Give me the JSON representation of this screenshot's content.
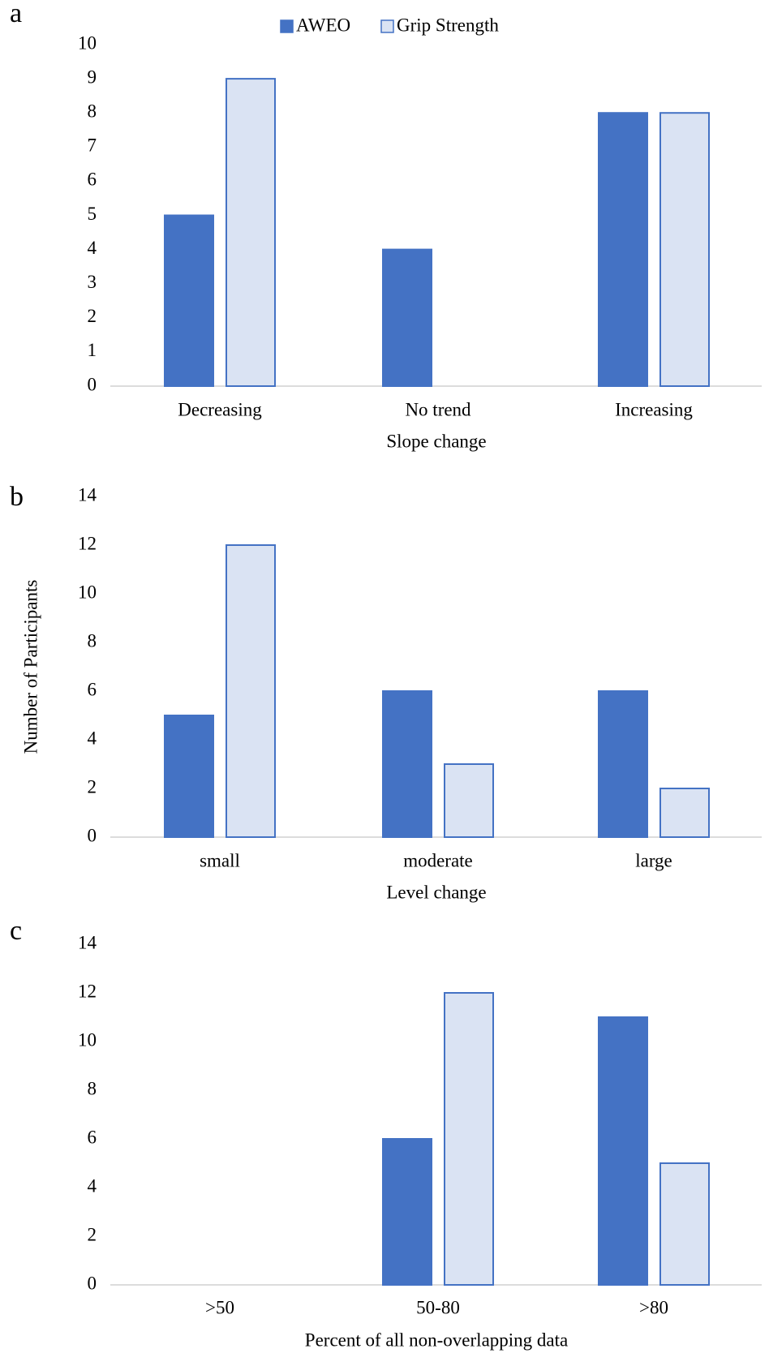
{
  "chart_data": [
    {
      "type": "bar",
      "panel": "a",
      "x_label": "Slope change",
      "categories": [
        "Decreasing",
        "No trend",
        "Increasing"
      ],
      "series": [
        {
          "name": "AWEO",
          "color": "#4472c4",
          "edgecolor": "#4472c4",
          "values": [
            5,
            4,
            8
          ]
        },
        {
          "name": "Grip Strength",
          "color": "#dae3f3",
          "edgecolor": "#4472c4",
          "values": [
            9,
            0,
            8
          ]
        }
      ],
      "ylim": [
        0,
        10
      ],
      "yticks": [
        0,
        1,
        2,
        3,
        4,
        5,
        6,
        7,
        8,
        9,
        10
      ],
      "legend": "top"
    },
    {
      "type": "bar",
      "panel": "b",
      "x_label": "Level change",
      "y_label": "Number of Participants",
      "categories": [
        "small",
        "moderate",
        "large"
      ],
      "series": [
        {
          "color": "#4472c4",
          "edgecolor": "#4472c4",
          "values": [
            5,
            6,
            6
          ]
        },
        {
          "color": "#dae3f3",
          "edgecolor": "#4472c4",
          "values": [
            12,
            3,
            2
          ]
        }
      ],
      "ylim": [
        0,
        14
      ],
      "yticks": [
        0,
        2,
        4,
        6,
        8,
        10,
        12,
        14
      ]
    },
    {
      "type": "bar",
      "panel": "c",
      "x_label": "Percent of all non-overlapping data",
      "categories": [
        ">50",
        "50-80",
        ">80"
      ],
      "series": [
        {
          "color": "#4472c4",
          "edgecolor": "#4472c4",
          "values": [
            0,
            6,
            11
          ]
        },
        {
          "color": "#dae3f3",
          "edgecolor": "#4472c4",
          "values": [
            0,
            12,
            5
          ]
        }
      ],
      "ylim": [
        0,
        14
      ],
      "yticks": [
        0,
        2,
        4,
        6,
        8,
        10,
        12,
        14
      ]
    }
  ]
}
